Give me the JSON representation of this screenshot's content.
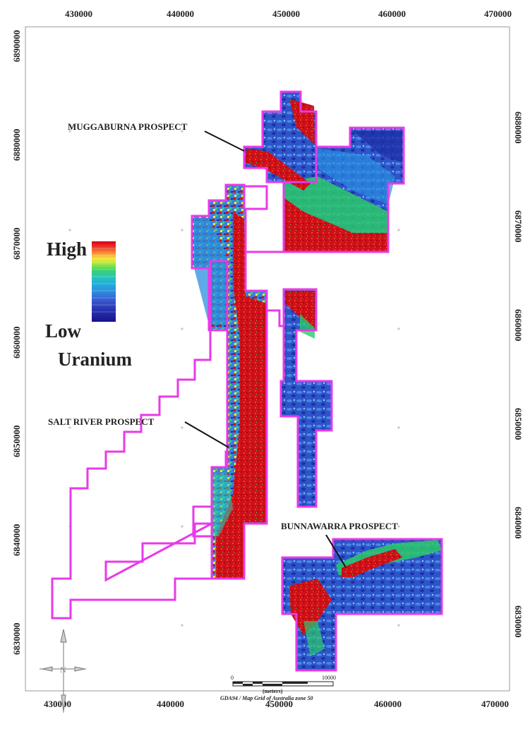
{
  "map": {
    "x_ticks_top": [
      "430000",
      "440000",
      "450000",
      "460000",
      "470000"
    ],
    "x_ticks_bottom": [
      "430000",
      "440000",
      "450000",
      "460000",
      "470000"
    ],
    "y_ticks_left": [
      "6890000",
      "6880000",
      "6870000",
      "6860000",
      "6850000",
      "6840000",
      "6830000"
    ],
    "y_ticks_right": [
      "6880000",
      "6870000",
      "6860000",
      "6850000",
      "6840000",
      "6830000"
    ],
    "prospects": {
      "muggaburna": "MUGGABURNA PROSPECT",
      "salt_river": "SALT RIVER PROSPECT",
      "bunnawarra": "BUNNAWARRA PROSPECT"
    },
    "legend": {
      "high": "High",
      "low": "Low",
      "title": "Uranium",
      "colors": [
        "#d9001b",
        "#f0402a",
        "#f7a33a",
        "#f2ea3c",
        "#a6e63c",
        "#3ad26e",
        "#26c8b4",
        "#22b0d8",
        "#2a8fe0",
        "#3a74d6",
        "#3a5fd0",
        "#3046c4",
        "#2a34b4",
        "#1f23a0",
        "#16148a"
      ]
    },
    "scale_bar": {
      "start": "0",
      "end": "10000",
      "unit": "(meters)",
      "projection": "GDA94 / Map Grid of Australia zone 50"
    },
    "north_arrow_label": "N",
    "colors": {
      "boundary": "#e83ae8",
      "high": "#d4101c",
      "mid": "#2bc96a",
      "low": "#2638c4"
    }
  }
}
